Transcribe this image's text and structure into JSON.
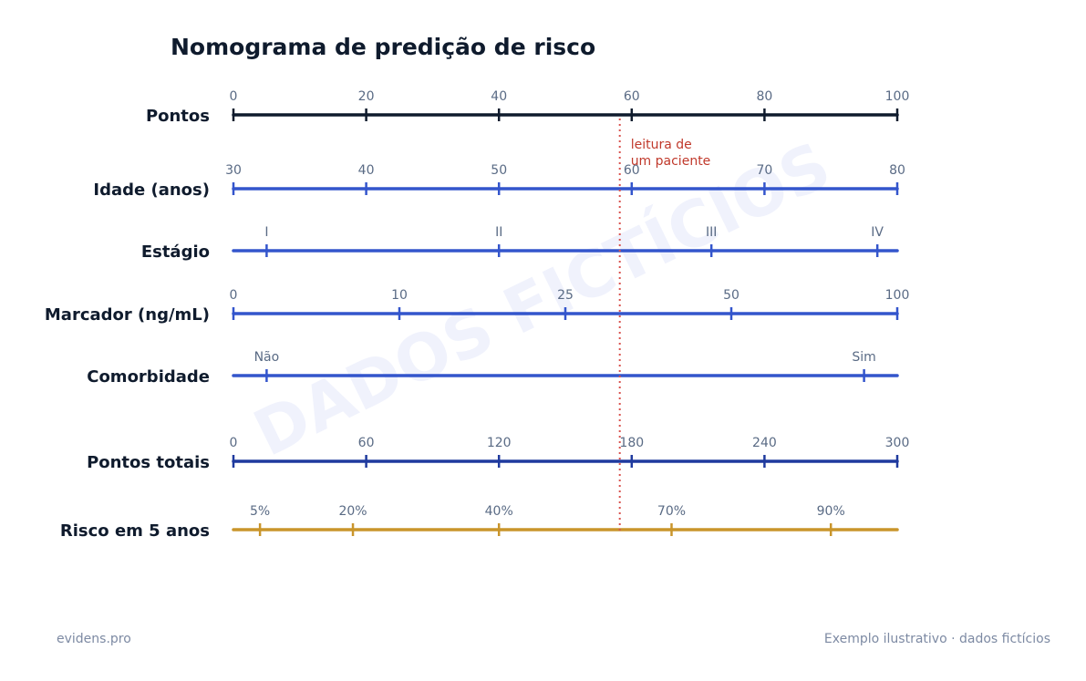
{
  "chart_data": {
    "type": "nomogram",
    "title": "Nomograma de predição de risco",
    "watermark": "DADOS FICTÍCIOS",
    "colors": {
      "points": "#0f1b2d",
      "predictor": "#3355cc",
      "total": "#1f3a9e",
      "risk": "#c9952b",
      "reading": "#d9534f",
      "annotation": "#c0392b"
    },
    "points_range": [
      0,
      100
    ],
    "rows": [
      {
        "id": "pontos",
        "label": "Pontos",
        "role": "points",
        "ticks": [
          {
            "label": "0",
            "points": 0
          },
          {
            "label": "20",
            "points": 20
          },
          {
            "label": "40",
            "points": 40
          },
          {
            "label": "60",
            "points": 60
          },
          {
            "label": "80",
            "points": 80
          },
          {
            "label": "100",
            "points": 100
          }
        ]
      },
      {
        "id": "idade",
        "label": "Idade (anos)",
        "role": "predictor",
        "ticks": [
          {
            "label": "30",
            "points": 0
          },
          {
            "label": "40",
            "points": 20
          },
          {
            "label": "50",
            "points": 40
          },
          {
            "label": "60",
            "points": 60
          },
          {
            "label": "70",
            "points": 80
          },
          {
            "label": "80",
            "points": 100
          }
        ]
      },
      {
        "id": "estagio",
        "label": "Estágio",
        "role": "predictor",
        "ticks": [
          {
            "label": "I",
            "points": 5
          },
          {
            "label": "II",
            "points": 40
          },
          {
            "label": "III",
            "points": 72
          },
          {
            "label": "IV",
            "points": 97
          }
        ]
      },
      {
        "id": "marcador",
        "label": "Marcador (ng/mL)",
        "role": "predictor",
        "ticks": [
          {
            "label": "0",
            "points": 0
          },
          {
            "label": "10",
            "points": 25
          },
          {
            "label": "25",
            "points": 50
          },
          {
            "label": "50",
            "points": 75
          },
          {
            "label": "100",
            "points": 100
          }
        ]
      },
      {
        "id": "comorbidade",
        "label": "Comorbidade",
        "role": "predictor",
        "ticks": [
          {
            "label": "Não",
            "points": 5
          },
          {
            "label": "Sim",
            "points": 95
          }
        ]
      },
      {
        "id": "pontos-totais",
        "label": "Pontos totais",
        "role": "total",
        "ticks": [
          {
            "label": "0",
            "points": 0
          },
          {
            "label": "60",
            "points": 20
          },
          {
            "label": "120",
            "points": 40
          },
          {
            "label": "180",
            "points": 60
          },
          {
            "label": "240",
            "points": 80
          },
          {
            "label": "300",
            "points": 100
          }
        ]
      },
      {
        "id": "risco",
        "label": "Risco em 5 anos",
        "role": "risk",
        "ticks": [
          {
            "label": "5%",
            "points": 4
          },
          {
            "label": "20%",
            "points": 18
          },
          {
            "label": "40%",
            "points": 40
          },
          {
            "label": "70%",
            "points": 66
          },
          {
            "label": "90%",
            "points": 90
          }
        ]
      }
    ],
    "reading": {
      "points": 58.2,
      "label_line1": "leitura de",
      "label_line2": "um paciente"
    }
  },
  "footer": {
    "left": "evidens.pro",
    "right": "Exemplo ilustrativo · dados fictícios"
  }
}
